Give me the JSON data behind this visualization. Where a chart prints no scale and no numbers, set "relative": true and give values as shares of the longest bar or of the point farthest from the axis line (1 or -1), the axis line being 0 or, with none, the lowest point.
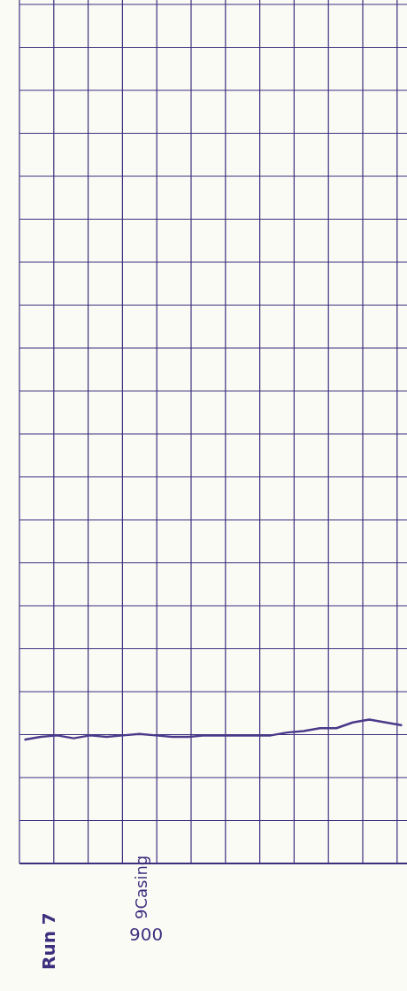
{
  "chart_data": {
    "type": "line",
    "relative": true,
    "categories": [
      null,
      null,
      null,
      null,
      null,
      null,
      null,
      null,
      null,
      null,
      null,
      null,
      null,
      null,
      null,
      null,
      null,
      null,
      null,
      null,
      null,
      null,
      null,
      null
    ],
    "series": [
      {
        "color": "#4b3a8a",
        "values": [
          0.86,
          0.88,
          0.89,
          0.87,
          0.89,
          0.88,
          0.89,
          0.9,
          0.89,
          0.88,
          0.88,
          0.89,
          0.89,
          0.89,
          0.89,
          0.89,
          0.91,
          0.92,
          0.94,
          0.94,
          0.98,
          1.0,
          0.98,
          0.96
        ]
      }
    ],
    "grid": true,
    "marker": "none",
    "line_style": "solid",
    "annotations": [
      "Run 7",
      "9Casing",
      "900"
    ]
  }
}
